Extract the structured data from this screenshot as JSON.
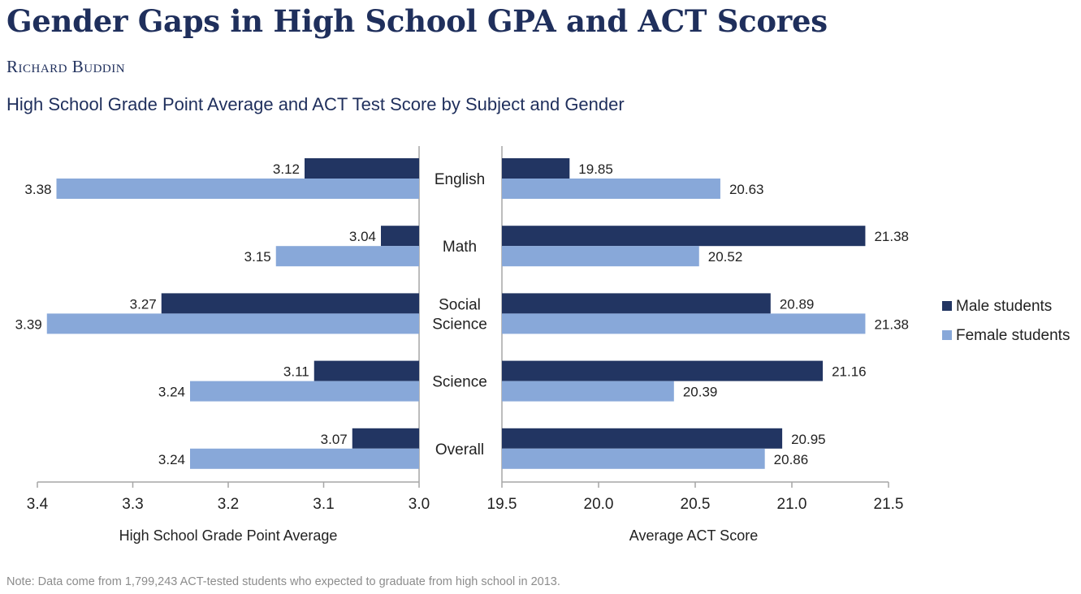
{
  "header": {
    "title": "Gender Gaps in High School GPA and ACT Scores",
    "author": "Richard Buddin",
    "subtitle": "High School Grade Point Average and ACT Test Score by Subject and Gender"
  },
  "note": "Note: Data come from 1,799,243 ACT-tested students who expected to graduate from high school in 2013.",
  "chart_data": [
    {
      "type": "bar",
      "orientation": "horizontal",
      "reversed_axis": true,
      "categories": [
        "English",
        "Math",
        "Social Science",
        "Science",
        "Overall"
      ],
      "category_lines": [
        [
          "English"
        ],
        [
          "Math"
        ],
        [
          "Social",
          "Science"
        ],
        [
          "Science"
        ],
        [
          "Overall"
        ]
      ],
      "series": [
        {
          "name": "Male students",
          "values": [
            3.12,
            3.04,
            3.27,
            3.11,
            3.07
          ],
          "labels": [
            "3.12",
            "3.04",
            "3.27",
            "3.11",
            "3.07"
          ],
          "color": "#223562"
        },
        {
          "name": "Female students",
          "values": [
            3.38,
            3.15,
            3.39,
            3.24,
            3.24
          ],
          "labels": [
            "3.38",
            "3.15",
            "3.39",
            "3.24",
            "3.24"
          ],
          "color": "#88a8d9"
        }
      ],
      "xlabel": "High School Grade Point Average",
      "xlim": [
        3.0,
        3.4
      ],
      "ticks": [
        3.4,
        3.3,
        3.2,
        3.1,
        3.0
      ],
      "tick_labels": [
        "3.4",
        "3.3",
        "3.2",
        "3.1",
        "3.0"
      ],
      "grid": false
    },
    {
      "type": "bar",
      "orientation": "horizontal",
      "categories": [
        "English",
        "Math",
        "Social Science",
        "Science",
        "Overall"
      ],
      "series": [
        {
          "name": "Male students",
          "values": [
            19.85,
            21.38,
            20.89,
            21.16,
            20.95
          ],
          "labels": [
            "19.85",
            "21.38",
            "20.89",
            "21.16",
            "20.95"
          ],
          "color": "#223562"
        },
        {
          "name": "Female students",
          "values": [
            20.63,
            20.52,
            21.38,
            20.39,
            20.86
          ],
          "labels": [
            "20.63",
            "20.52",
            "21.38",
            "20.39",
            "20.86"
          ],
          "color": "#88a8d9"
        }
      ],
      "xlabel": "Average ACT Score",
      "xlim": [
        19.5,
        21.5
      ],
      "ticks": [
        19.5,
        20.0,
        20.5,
        21.0,
        21.5
      ],
      "tick_labels": [
        "19.5",
        "20.0",
        "20.5",
        "21.0",
        "21.5"
      ],
      "grid": false,
      "legend": "right"
    }
  ]
}
